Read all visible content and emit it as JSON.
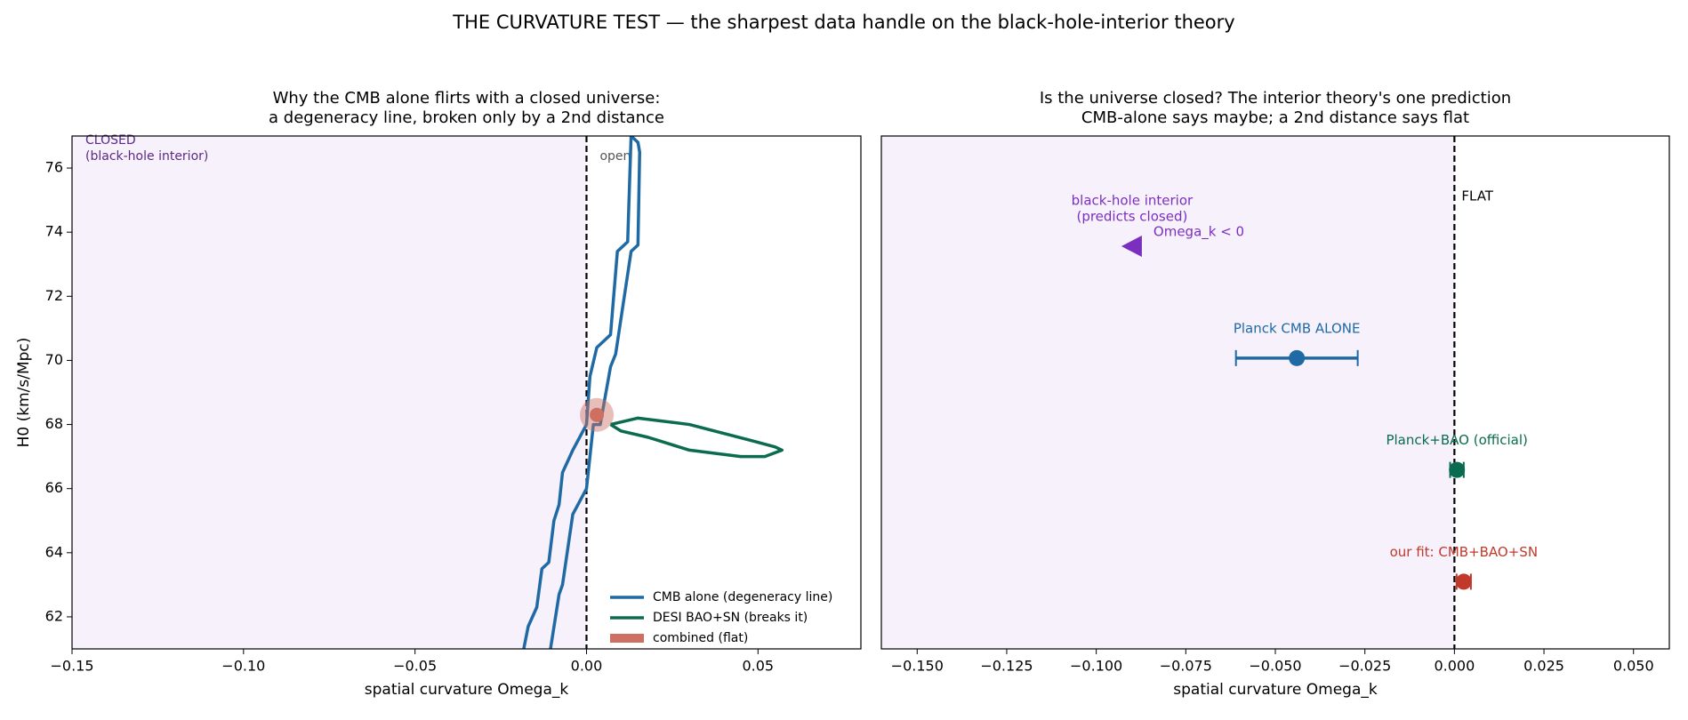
{
  "title": "THE CURVATURE TEST — the sharpest data handle on the black-hole-interior theory",
  "chart_data": [
    {
      "type": "contour",
      "title": [
        "Why the CMB alone flirts with a closed universe:",
        "a degeneracy line, broken only by a 2nd distance"
      ],
      "xlabel": "spatial curvature  Omega_k",
      "ylabel": "H0  (km/s/Mpc)",
      "xlim": [
        -0.15,
        0.08
      ],
      "xticks": [
        {
          "value": -0.15,
          "label": "−0.15"
        },
        {
          "value": -0.1,
          "label": "−0.10"
        },
        {
          "value": -0.05,
          "label": "−0.05"
        },
        {
          "value": 0,
          "label": "0.00"
        },
        {
          "value": 0.05,
          "label": "0.05"
        }
      ],
      "ylim": [
        61,
        77
      ],
      "yticks": [
        62,
        64,
        66,
        68,
        70,
        72,
        74,
        76
      ],
      "closed_label": [
        "CLOSED",
        "(black-hole interior)"
      ],
      "open_label": "open",
      "legend": "lower right",
      "series": [
        {
          "name": "CMB alone (degeneracy line)",
          "color": "#1f6aa5",
          "x": [
            -0.0183,
            -0.017,
            -0.0145,
            -0.013,
            -0.011,
            -0.0095,
            -0.008,
            -0.007,
            -0.004,
            0.0,
            0.001,
            0.003,
            0.007,
            0.009,
            0.012,
            0.013,
            0.015,
            0.0155,
            0.015,
            0.013,
            0.0085,
            0.007,
            0.004,
            0.002,
            0.0,
            -0.004,
            -0.007,
            -0.008,
            -0.0105
          ],
          "y": [
            61.0,
            61.7,
            62.3,
            63.5,
            63.7,
            65.0,
            65.5,
            66.5,
            67.2,
            68.0,
            69.5,
            70.4,
            70.8,
            73.4,
            73.7,
            77.0,
            76.8,
            76.5,
            73.6,
            73.4,
            70.2,
            69.8,
            68.0,
            68.0,
            66.0,
            65.2,
            63.0,
            62.7,
            61.0
          ]
        },
        {
          "name": "DESI BAO+SN (breaks it)",
          "color": "#0b6b4f",
          "x": [
            0.007,
            0.015,
            0.03,
            0.048,
            0.055,
            0.057,
            0.052,
            0.045,
            0.03,
            0.018,
            0.01,
            0.007
          ],
          "y": [
            68.0,
            68.2,
            68.0,
            67.5,
            67.3,
            67.2,
            67.0,
            67.0,
            67.2,
            67.6,
            67.8,
            68.0
          ]
        },
        {
          "name": "combined (flat)",
          "color": "#cd6f61",
          "x": [
            0.003
          ],
          "y": [
            68.3
          ]
        }
      ]
    },
    {
      "type": "errorbar",
      "title": [
        "Is the universe closed? The interior theory's one prediction",
        "CMB-alone says maybe; a 2nd distance says flat"
      ],
      "xlabel": "spatial curvature  Omega_k",
      "xlim": [
        -0.16,
        0.06
      ],
      "xticks": [
        {
          "value": -0.15,
          "label": "−0.150"
        },
        {
          "value": -0.125,
          "label": "−0.125"
        },
        {
          "value": -0.1,
          "label": "−0.100"
        },
        {
          "value": -0.075,
          "label": "−0.075"
        },
        {
          "value": -0.05,
          "label": "−0.050"
        },
        {
          "value": -0.025,
          "label": "−0.025"
        },
        {
          "value": 0,
          "label": "0.000"
        },
        {
          "value": 0.025,
          "label": "0.025"
        },
        {
          "value": 0.05,
          "label": "0.050"
        }
      ],
      "flat_label": "FLAT",
      "series": [
        {
          "name": [
            "black-hole interior",
            "(predicts closed)"
          ],
          "note": "Omega_k < 0",
          "marker": "triangle",
          "color": "#7b2fbe",
          "x": -0.09
        },
        {
          "name": "Planck CMB ALONE",
          "marker": "circle",
          "color": "#1f6aa5",
          "x": -0.044,
          "err": 0.017
        },
        {
          "name": "Planck+BAO (official)",
          "marker": "circle",
          "color": "#0b6b4f",
          "x": 0.0007,
          "err": 0.0019
        },
        {
          "name": "our fit: CMB+BAO+SN",
          "marker": "circle",
          "color": "#c0392b",
          "x": 0.0026,
          "err": 0.002
        }
      ]
    }
  ]
}
